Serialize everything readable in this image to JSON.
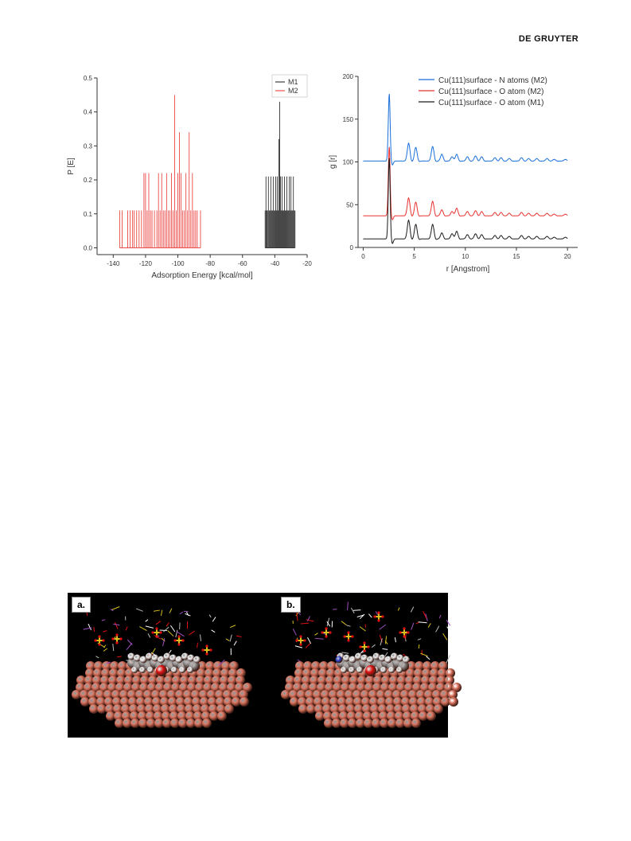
{
  "header": {
    "brand": "DE GRUYTER"
  },
  "chart_data": [
    {
      "type": "bar",
      "subtype": "stick-histogram",
      "xlabel": "Adsorption Energy [kcal/mol]",
      "ylabel": "P [E]",
      "xlim": [
        -150,
        -20
      ],
      "ylim": [
        -0.02,
        0.5
      ],
      "x_ticks": [
        -140,
        -120,
        -100,
        -80,
        -60,
        -40,
        -20
      ],
      "y_ticks": [
        0.0,
        0.1,
        0.2,
        0.3,
        0.4,
        0.5
      ],
      "x_tick_labels": [
        "-140",
        "-120",
        "-100",
        "-80",
        "-60",
        "-40",
        "-20"
      ],
      "y_tick_labels": [
        "0.0",
        "0.1",
        "0.2",
        "0.3",
        "0.4",
        "0.5"
      ],
      "legend_position": "top-right",
      "series": [
        {
          "name": "M1",
          "color": "#1a1a1a",
          "x": [
            -46.0,
            -45.5,
            -45.0,
            -44.6,
            -44.0,
            -43.5,
            -43.0,
            -42.5,
            -42.0,
            -41.5,
            -41.0,
            -40.5,
            -40.0,
            -39.5,
            -39.0,
            -38.5,
            -38.0,
            -37.5,
            -37.0,
            -36.5,
            -36.0,
            -35.5,
            -35.0,
            -34.5,
            -34.0,
            -33.5,
            -33.0,
            -32.5,
            -32.0,
            -31.5,
            -31.0,
            -30.5,
            -30.0,
            -29.5,
            -29.0,
            -28.5,
            -28.0,
            -27.5
          ],
          "y": [
            0.11,
            0.21,
            0.11,
            0.11,
            0.21,
            0.11,
            0.11,
            0.21,
            0.11,
            0.11,
            0.21,
            0.11,
            0.11,
            0.21,
            0.11,
            0.21,
            0.11,
            0.32,
            0.43,
            0.21,
            0.11,
            0.21,
            0.11,
            0.11,
            0.21,
            0.11,
            0.11,
            0.21,
            0.11,
            0.11,
            0.21,
            0.11,
            0.21,
            0.11,
            0.11,
            0.21,
            0.11,
            0.11
          ]
        },
        {
          "name": "M2",
          "color": "#e8312f",
          "x": [
            -136.0,
            -134.5,
            -131.0,
            -129.5,
            -128.0,
            -127.0,
            -125.5,
            -124.0,
            -122.5,
            -121.0,
            -120.0,
            -119.0,
            -118.0,
            -117.0,
            -116.0,
            -114.5,
            -113.0,
            -112.0,
            -111.0,
            -110.0,
            -109.0,
            -108.0,
            -107.0,
            -106.0,
            -105.0,
            -104.0,
            -103.0,
            -102.0,
            -101.0,
            -100.0,
            -99.0,
            -98.0,
            -97.0,
            -96.0,
            -95.0,
            -94.0,
            -93.0,
            -92.0,
            -91.0,
            -90.0,
            -89.0,
            -88.0,
            -86.0
          ],
          "y": [
            0.11,
            0.11,
            0.11,
            0.11,
            0.11,
            0.11,
            0.11,
            0.11,
            0.11,
            0.22,
            0.22,
            0.11,
            0.22,
            0.11,
            0.11,
            0.11,
            0.11,
            0.22,
            0.11,
            0.22,
            0.11,
            0.11,
            0.22,
            0.11,
            0.11,
            0.22,
            0.11,
            0.45,
            0.11,
            0.22,
            0.34,
            0.22,
            0.11,
            0.11,
            0.22,
            0.11,
            0.34,
            0.11,
            0.22,
            0.11,
            0.11,
            0.11,
            0.11
          ]
        }
      ]
    },
    {
      "type": "line",
      "xlabel": "r [Angstrom]",
      "ylabel": "g [r]",
      "xlim": [
        -0.5,
        21
      ],
      "ylim": [
        0,
        200
      ],
      "x_ticks": [
        0,
        5,
        10,
        15,
        20
      ],
      "y_ticks": [
        0,
        50,
        100,
        150,
        200
      ],
      "x_tick_labels": [
        "0",
        "5",
        "10",
        "15",
        "20"
      ],
      "y_tick_labels": [
        "0",
        "50",
        "100",
        "150",
        "200"
      ],
      "legend_position": "top-right",
      "series": [
        {
          "name": "Cu(111)surface  - N  atoms (M2)",
          "color": "#1a6fd9",
          "baseline": 101,
          "peaks": [
            [
              2.55,
              79
            ],
            [
              4.45,
              21
            ],
            [
              5.15,
              16
            ],
            [
              6.8,
              17
            ],
            [
              7.7,
              8
            ],
            [
              8.7,
              5
            ],
            [
              9.15,
              8
            ],
            [
              10.2,
              5
            ],
            [
              11.0,
              6
            ],
            [
              11.6,
              5
            ],
            [
              12.9,
              4
            ],
            [
              13.5,
              4
            ],
            [
              14.3,
              3
            ],
            [
              15.5,
              4
            ],
            [
              16.2,
              3
            ],
            [
              17.0,
              3
            ],
            [
              18.0,
              3
            ],
            [
              18.7,
              2
            ],
            [
              19.8,
              2
            ]
          ]
        },
        {
          "name": "Cu(111)surface  - O atom (M2)",
          "color": "#e8312f",
          "baseline": 37,
          "peaks": [
            [
              2.55,
              81
            ],
            [
              4.45,
              21
            ],
            [
              5.15,
              16
            ],
            [
              6.8,
              17
            ],
            [
              7.7,
              7
            ],
            [
              8.7,
              5
            ],
            [
              9.15,
              9
            ],
            [
              10.2,
              5
            ],
            [
              11.0,
              6
            ],
            [
              11.6,
              5
            ],
            [
              12.9,
              4
            ],
            [
              13.5,
              4
            ],
            [
              14.3,
              3
            ],
            [
              15.5,
              4
            ],
            [
              16.2,
              3
            ],
            [
              17.0,
              3
            ],
            [
              18.0,
              3
            ],
            [
              18.7,
              2
            ],
            [
              19.8,
              2
            ]
          ]
        },
        {
          "name": "Cu(111)surface  - O atom (M1)",
          "color": "#1a1a1a",
          "baseline": 10,
          "peaks": [
            [
              2.55,
              95
            ],
            [
              4.45,
              22
            ],
            [
              5.15,
              17
            ],
            [
              6.8,
              17
            ],
            [
              7.7,
              7
            ],
            [
              8.7,
              6
            ],
            [
              9.15,
              9
            ],
            [
              10.2,
              5
            ],
            [
              11.0,
              6
            ],
            [
              11.6,
              5
            ],
            [
              12.9,
              4
            ],
            [
              13.5,
              4
            ],
            [
              14.3,
              3
            ],
            [
              15.5,
              4
            ],
            [
              16.2,
              3
            ],
            [
              17.0,
              3
            ],
            [
              18.0,
              3
            ],
            [
              18.7,
              2
            ],
            [
              19.8,
              2
            ]
          ]
        }
      ]
    }
  ],
  "figure_panels": [
    {
      "label": "a."
    },
    {
      "label": "b."
    }
  ],
  "colors": {
    "copper": "#d9715c",
    "carbon": "#8e8e8e",
    "hydrogen": "#f0f0f0",
    "oxygen": "#e01010",
    "sulfur": "#d8c020",
    "nitrogen": "#2a3fd0"
  }
}
